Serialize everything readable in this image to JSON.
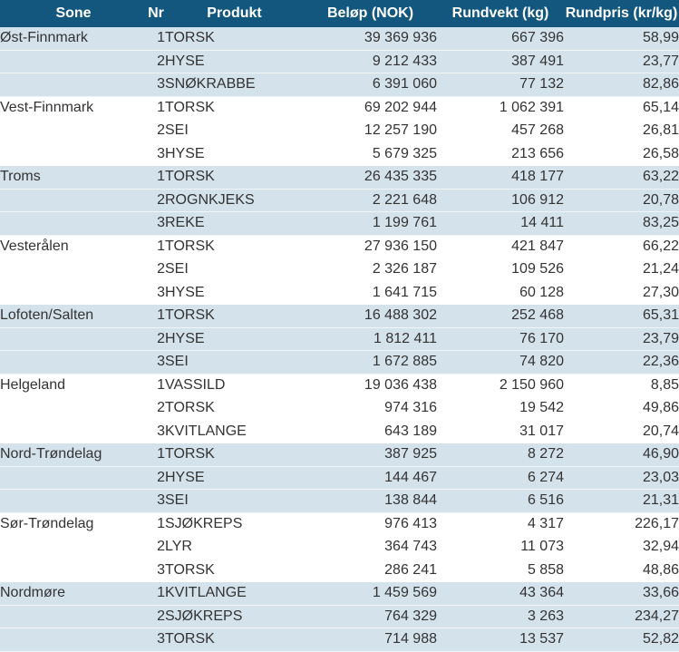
{
  "colors": {
    "header_bg": "#14577E",
    "header_text": "#FFFFFF",
    "row_alt_bg": "#D4E2EC",
    "row_white_bg": "#FFFFFF",
    "body_text": "#333333"
  },
  "chart_data": {
    "type": "table",
    "title": "",
    "columns": [
      "Sone",
      "Nr",
      "Produkt",
      "Beløp (NOK)",
      "Rundvekt (kg)",
      "Rundpris (kr/kg)"
    ],
    "number_format": {
      "thousands_separator": " ",
      "decimal_separator": ","
    },
    "layout": {
      "zebra_striping": "per_zone_group",
      "first_group_shaded": true
    },
    "groups": [
      {
        "sone": "Øst-Finnmark",
        "rows": [
          {
            "nr": "1",
            "produkt": "TORSK",
            "belop": "39 369 936",
            "rundvekt": "667 396",
            "rundpris": "58,99"
          },
          {
            "nr": "2",
            "produkt": "HYSE",
            "belop": "9 212 433",
            "rundvekt": "387 491",
            "rundpris": "23,77"
          },
          {
            "nr": "3",
            "produkt": "SNØKRABBE",
            "belop": "6 391 060",
            "rundvekt": "77 132",
            "rundpris": "82,86"
          }
        ]
      },
      {
        "sone": "Vest-Finnmark",
        "rows": [
          {
            "nr": "1",
            "produkt": "TORSK",
            "belop": "69 202 944",
            "rundvekt": "1 062 391",
            "rundpris": "65,14"
          },
          {
            "nr": "2",
            "produkt": "SEI",
            "belop": "12 257 190",
            "rundvekt": "457 268",
            "rundpris": "26,81"
          },
          {
            "nr": "3",
            "produkt": "HYSE",
            "belop": "5 679 325",
            "rundvekt": "213 656",
            "rundpris": "26,58"
          }
        ]
      },
      {
        "sone": "Troms",
        "rows": [
          {
            "nr": "1",
            "produkt": "TORSK",
            "belop": "26 435 335",
            "rundvekt": "418 177",
            "rundpris": "63,22"
          },
          {
            "nr": "2",
            "produkt": "ROGNKJEKS",
            "belop": "2 221 648",
            "rundvekt": "106 912",
            "rundpris": "20,78"
          },
          {
            "nr": "3",
            "produkt": "REKE",
            "belop": "1 199 761",
            "rundvekt": "14 411",
            "rundpris": "83,25"
          }
        ]
      },
      {
        "sone": "Vesterålen",
        "rows": [
          {
            "nr": "1",
            "produkt": "TORSK",
            "belop": "27 936 150",
            "rundvekt": "421 847",
            "rundpris": "66,22"
          },
          {
            "nr": "2",
            "produkt": "SEI",
            "belop": "2 326 187",
            "rundvekt": "109 526",
            "rundpris": "21,24"
          },
          {
            "nr": "3",
            "produkt": "HYSE",
            "belop": "1 641 715",
            "rundvekt": "60 128",
            "rundpris": "27,30"
          }
        ]
      },
      {
        "sone": "Lofoten/Salten",
        "rows": [
          {
            "nr": "1",
            "produkt": "TORSK",
            "belop": "16 488 302",
            "rundvekt": "252 468",
            "rundpris": "65,31"
          },
          {
            "nr": "2",
            "produkt": "HYSE",
            "belop": "1 812 411",
            "rundvekt": "76 170",
            "rundpris": "23,79"
          },
          {
            "nr": "3",
            "produkt": "SEI",
            "belop": "1 672 885",
            "rundvekt": "74 820",
            "rundpris": "22,36"
          }
        ]
      },
      {
        "sone": "Helgeland",
        "rows": [
          {
            "nr": "1",
            "produkt": "VASSILD",
            "belop": "19 036 438",
            "rundvekt": "2 150 960",
            "rundpris": "8,85"
          },
          {
            "nr": "2",
            "produkt": "TORSK",
            "belop": "974 316",
            "rundvekt": "19 542",
            "rundpris": "49,86"
          },
          {
            "nr": "3",
            "produkt": "KVITLANGE",
            "belop": "643 189",
            "rundvekt": "31 017",
            "rundpris": "20,74"
          }
        ]
      },
      {
        "sone": "Nord-Trøndelag",
        "rows": [
          {
            "nr": "1",
            "produkt": "TORSK",
            "belop": "387 925",
            "rundvekt": "8 272",
            "rundpris": "46,90"
          },
          {
            "nr": "2",
            "produkt": "HYSE",
            "belop": "144 467",
            "rundvekt": "6 274",
            "rundpris": "23,03"
          },
          {
            "nr": "3",
            "produkt": "SEI",
            "belop": "138 844",
            "rundvekt": "6 516",
            "rundpris": "21,31"
          }
        ]
      },
      {
        "sone": "Sør-Trøndelag",
        "rows": [
          {
            "nr": "1",
            "produkt": "SJØKREPS",
            "belop": "976 413",
            "rundvekt": "4 317",
            "rundpris": "226,17"
          },
          {
            "nr": "2",
            "produkt": "LYR",
            "belop": "364 743",
            "rundvekt": "11 073",
            "rundpris": "32,94"
          },
          {
            "nr": "3",
            "produkt": "TORSK",
            "belop": "286 241",
            "rundvekt": "5 858",
            "rundpris": "48,86"
          }
        ]
      },
      {
        "sone": "Nordmøre",
        "rows": [
          {
            "nr": "1",
            "produkt": "KVITLANGE",
            "belop": "1 459 569",
            "rundvekt": "43 364",
            "rundpris": "33,66"
          },
          {
            "nr": "2",
            "produkt": "SJØKREPS",
            "belop": "764 329",
            "rundvekt": "3 263",
            "rundpris": "234,27"
          },
          {
            "nr": "3",
            "produkt": "TORSK",
            "belop": "714 988",
            "rundvekt": "13 537",
            "rundpris": "52,82"
          }
        ]
      }
    ]
  }
}
